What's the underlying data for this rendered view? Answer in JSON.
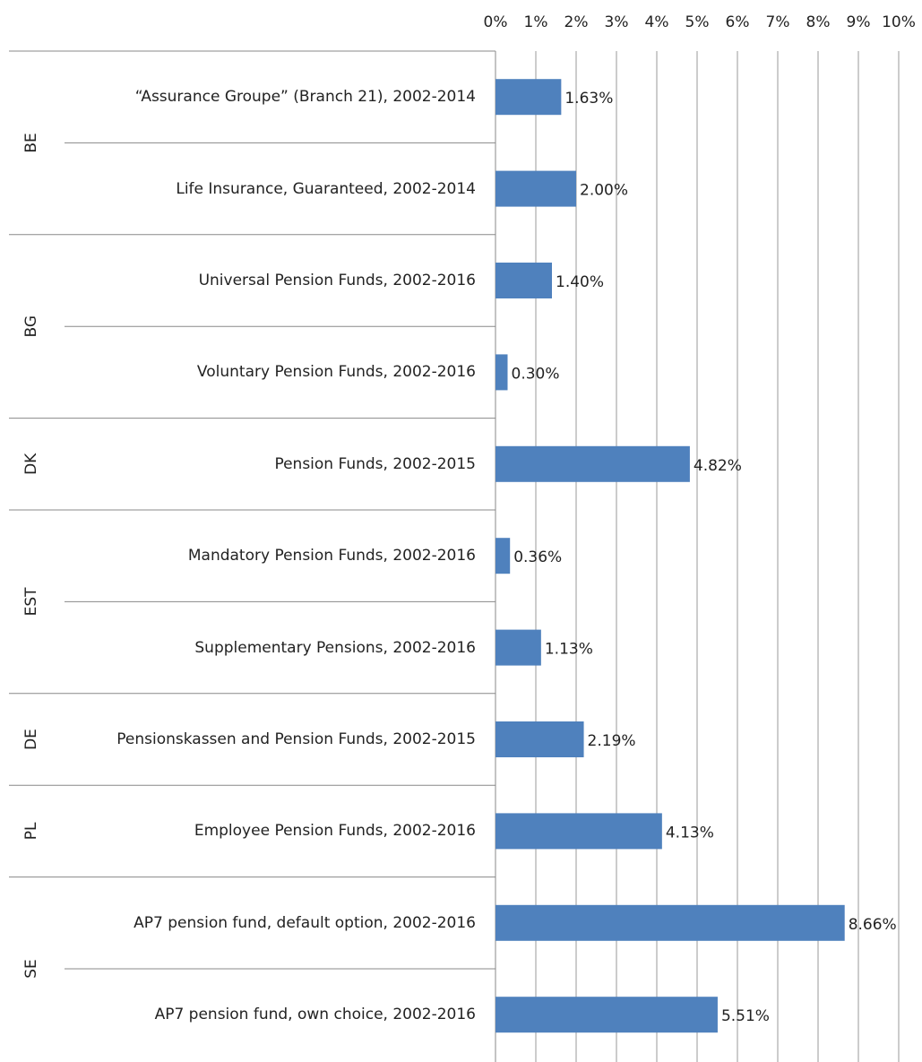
{
  "chart_data": {
    "type": "bar",
    "orientation": "horizontal",
    "color": "#4f81bd",
    "grid": true,
    "xlim": [
      0,
      10
    ],
    "xticks": [
      {
        "value": 0,
        "label": "0%"
      },
      {
        "value": 1,
        "label": "1%"
      },
      {
        "value": 2,
        "label": "2%"
      },
      {
        "value": 3,
        "label": "3%"
      },
      {
        "value": 4,
        "label": "4%"
      },
      {
        "value": 5,
        "label": "5%"
      },
      {
        "value": 6,
        "label": "6%"
      },
      {
        "value": 7,
        "label": "7%"
      },
      {
        "value": 8,
        "label": "8%"
      },
      {
        "value": 9,
        "label": "9%"
      },
      {
        "value": 10,
        "label": "10%"
      }
    ],
    "groups": [
      {
        "name": "BE",
        "categories": [
          "“Assurance Groupe” (Branch 21), 2002-2014",
          "Life Insurance, Guaranteed, 2002-2014"
        ],
        "values": [
          1.63,
          2.0
        ],
        "value_labels": [
          "1.63%",
          "2.00%"
        ]
      },
      {
        "name": "BG",
        "categories": [
          "Universal Pension Funds, 2002-2016",
          "Voluntary Pension Funds, 2002-2016"
        ],
        "values": [
          1.4,
          0.3
        ],
        "value_labels": [
          "1.40%",
          "0.30%"
        ]
      },
      {
        "name": "DK",
        "categories": [
          "Pension Funds, 2002-2015"
        ],
        "values": [
          4.82
        ],
        "value_labels": [
          "4.82%"
        ]
      },
      {
        "name": "EST",
        "categories": [
          "Mandatory Pension Funds, 2002-2016",
          "Supplementary Pensions, 2002-2016"
        ],
        "values": [
          0.36,
          1.13
        ],
        "value_labels": [
          "0.36%",
          "1.13%"
        ]
      },
      {
        "name": "DE",
        "categories": [
          "Pensionskassen and Pension Funds, 2002-2015"
        ],
        "values": [
          2.19
        ],
        "value_labels": [
          "2.19%"
        ]
      },
      {
        "name": "PL",
        "categories": [
          "Employee Pension Funds, 2002-2016"
        ],
        "values": [
          4.13
        ],
        "value_labels": [
          "4.13%"
        ]
      },
      {
        "name": "SE",
        "categories": [
          "AP7 pension fund, default option, 2002-2016",
          "AP7 pension fund, own choice, 2002-2016"
        ],
        "values": [
          8.66,
          5.51
        ],
        "value_labels": [
          "8.66%",
          "5.51%"
        ]
      }
    ]
  }
}
